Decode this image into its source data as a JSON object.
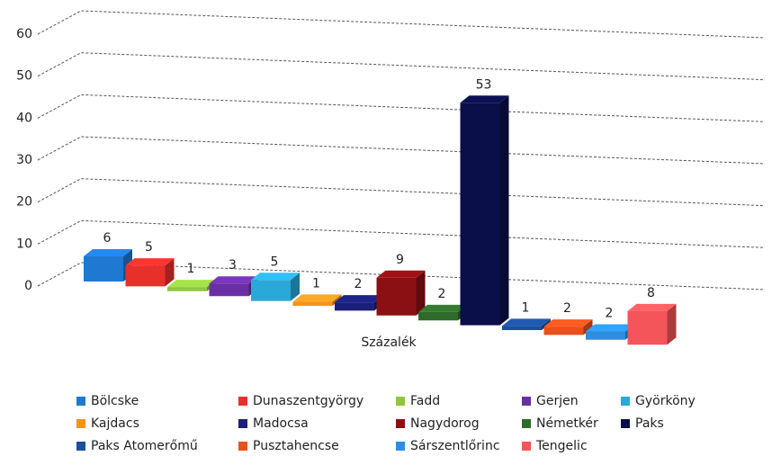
{
  "chart_data": {
    "type": "bar3d",
    "categories": [
      "Százalék"
    ],
    "series": [
      {
        "name": "Bölcske",
        "color": "#1f78d1",
        "values": [
          6
        ]
      },
      {
        "name": "Dunaszentgyörgy",
        "color": "#e8302a",
        "values": [
          5
        ]
      },
      {
        "name": "Fadd",
        "color": "#8fc63f",
        "values": [
          1
        ]
      },
      {
        "name": "Gerjen",
        "color": "#6a2fa5",
        "values": [
          3
        ]
      },
      {
        "name": "Györköny",
        "color": "#2aa8d8",
        "values": [
          5
        ]
      },
      {
        "name": "Kajdacs",
        "color": "#f5921e",
        "values": [
          1
        ]
      },
      {
        "name": "Madocsa",
        "color": "#1a1f7a",
        "values": [
          2
        ]
      },
      {
        "name": "Nagydorog",
        "color": "#8b1014",
        "values": [
          9
        ]
      },
      {
        "name": "Németkér",
        "color": "#2e6b2a",
        "values": [
          2
        ]
      },
      {
        "name": "Paks",
        "color": "#0a0f4a",
        "values": [
          53
        ]
      },
      {
        "name": "Paks Atomerőmű",
        "color": "#1c4f9c",
        "values": [
          1
        ]
      },
      {
        "name": "Pusztahencse",
        "color": "#e8501c",
        "values": [
          2
        ]
      },
      {
        "name": "Sárszentlőrinc",
        "color": "#2d8de0",
        "values": [
          2
        ]
      },
      {
        "name": "Tengelic",
        "color": "#f4555a",
        "values": [
          8
        ]
      }
    ],
    "ylim": [
      0,
      60
    ],
    "yticks": [
      0,
      10,
      20,
      30,
      40,
      50,
      60
    ],
    "grid": true,
    "legend": "bottom"
  }
}
